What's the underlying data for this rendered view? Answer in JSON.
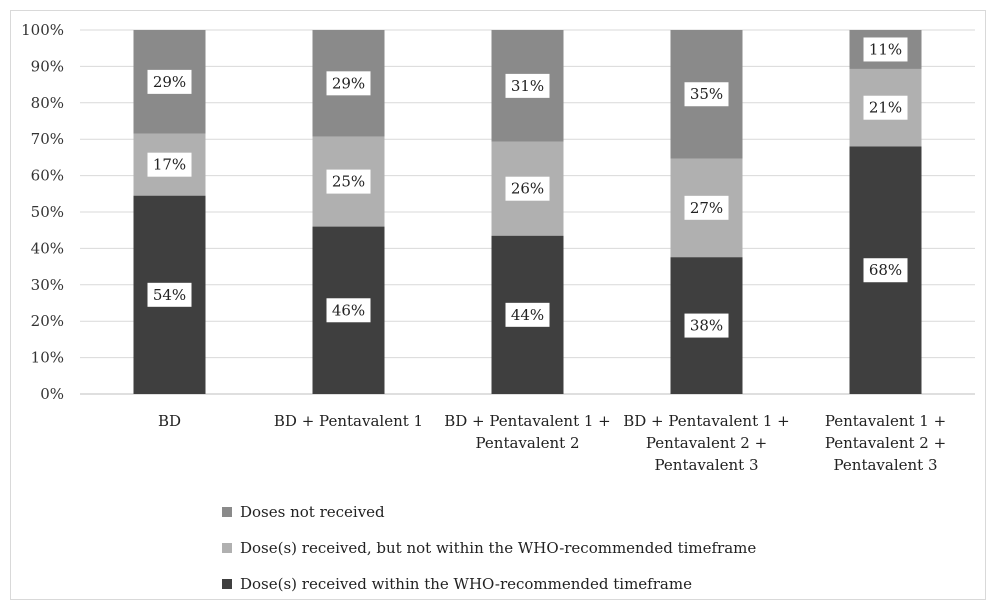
{
  "chart_data": {
    "type": "bar",
    "stacked": true,
    "categories": [
      [
        "BD"
      ],
      [
        "BD + Pentavalent 1"
      ],
      [
        "BD + Pentavalent 1 +",
        "Pentavalent 2"
      ],
      [
        "BD + Pentavalent 1 +",
        "Pentavalent 2 +",
        "Pentavalent 3"
      ],
      [
        "Pentavalent 1 +",
        "Pentavalent 2 +",
        "Pentavalent 3"
      ]
    ],
    "series": [
      {
        "name": "Dose(s) received within the WHO-recommended timeframe",
        "color": "#3f3f3f",
        "values": [
          54.5,
          46,
          43.5,
          37.6,
          68
        ],
        "labels": [
          "54%",
          "46%",
          "44%",
          "38%",
          "68%"
        ]
      },
      {
        "name": "Dose(s) received, but not within the WHO-recommended timeframe",
        "color": "#b0b0b0",
        "values": [
          17,
          24.7,
          25.8,
          27.1,
          21.3
        ],
        "labels": [
          "17%",
          "25%",
          "26%",
          "27%",
          "21%"
        ]
      },
      {
        "name": "Doses not received",
        "color": "#8a8a8a",
        "values": [
          28.5,
          29.3,
          30.7,
          35.3,
          10.7
        ],
        "labels": [
          "29%",
          "29%",
          "31%",
          "35%",
          "11%"
        ]
      }
    ],
    "yticks": [
      "0%",
      "10%",
      "20%",
      "30%",
      "40%",
      "50%",
      "60%",
      "70%",
      "80%",
      "90%",
      "100%"
    ],
    "ylim": [
      0,
      100
    ],
    "grid": true,
    "legend_position": "bottom",
    "legend_order": [
      2,
      1,
      0
    ]
  }
}
